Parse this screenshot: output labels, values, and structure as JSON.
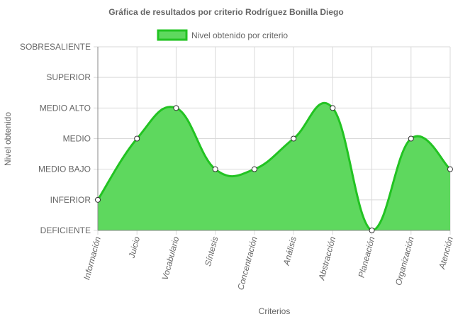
{
  "chart_data": {
    "type": "area",
    "title": "Gráfica de resultados por criterio Rodríguez Bonilla Diego",
    "xlabel": "Criterios",
    "ylabel": "Nivel obtenido",
    "legend": {
      "position": "top-center",
      "entries": [
        "Nivel obtenido por criterio"
      ]
    },
    "y_levels": [
      "DEFICIENTE",
      "INFERIOR",
      "MEDIO BAJO",
      "MEDIO",
      "MEDIO ALTO",
      "SUPERIOR",
      "SOBRESALIENTE"
    ],
    "ylim": [
      0,
      6
    ],
    "grid": true,
    "categories": [
      "Información",
      "Juicio",
      "Vocabulario",
      "Síntesis",
      "Concentración",
      "Análisis",
      "Abstracción",
      "Planeación",
      "Organización",
      "Atención"
    ],
    "series": [
      {
        "name": "Nivel obtenido por criterio",
        "values": [
          1,
          3,
          4,
          2,
          2,
          3,
          4,
          0,
          3,
          2
        ]
      }
    ],
    "colors": {
      "line": "#22c322",
      "fill": "#5ed85e",
      "grid": "#d9d9d9",
      "axis": "#888888",
      "text": "#666666"
    }
  }
}
